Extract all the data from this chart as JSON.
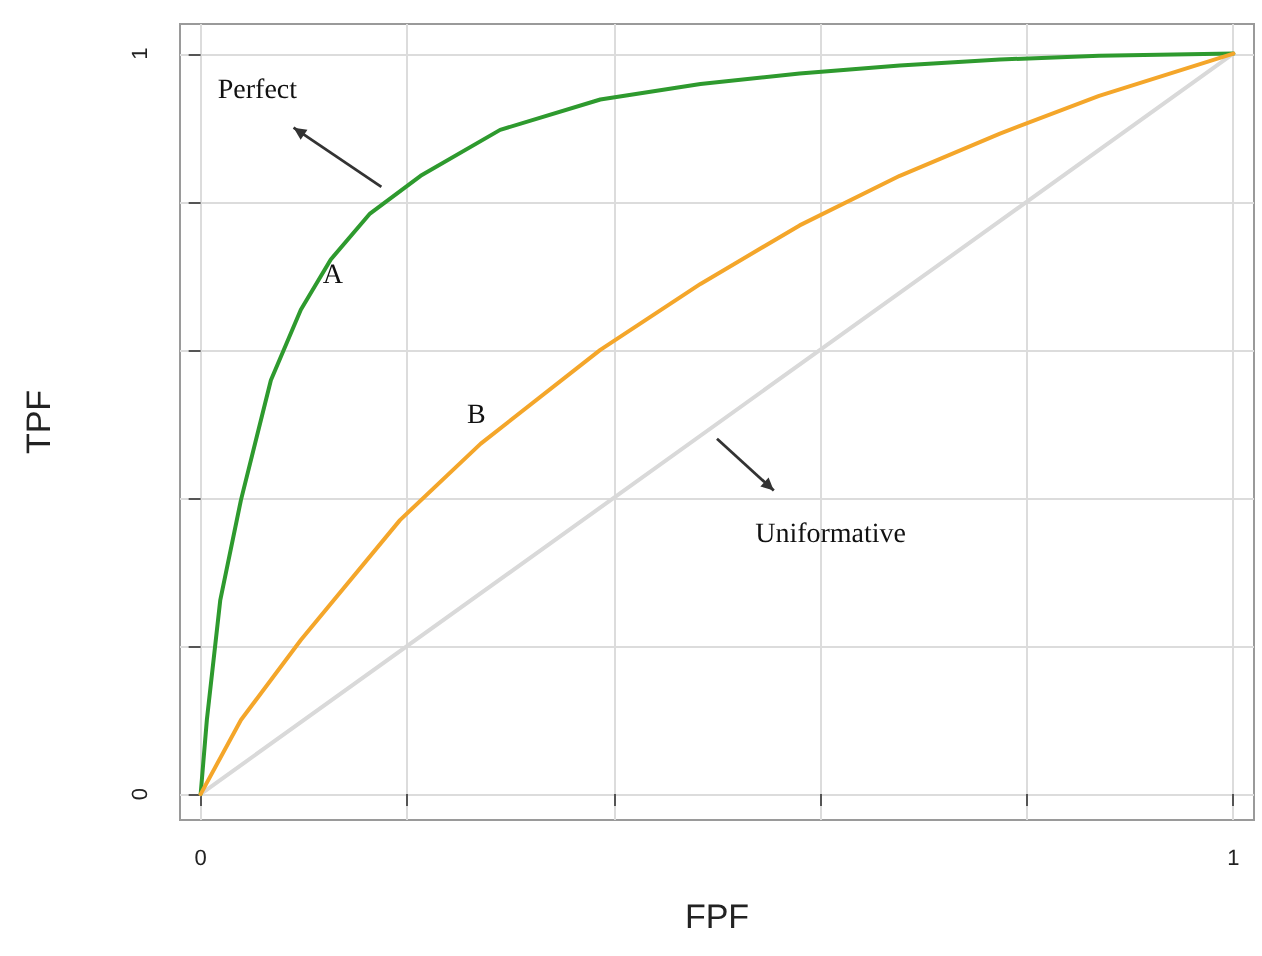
{
  "chart_data": {
    "type": "line",
    "xlabel": "FPF",
    "ylabel": "TPF",
    "xlim": [
      -0.02,
      1.02
    ],
    "ylim": [
      -0.035,
      1.04
    ],
    "xticks": [
      0,
      {
        "value": 0.2,
        "label": null
      },
      {
        "value": 0.4,
        "label": null
      },
      {
        "value": 0.6,
        "label": null
      },
      {
        "value": 0.8,
        "label": null
      },
      1
    ],
    "yticks": [
      0,
      {
        "value": 0.2,
        "label": null
      },
      {
        "value": 0.4,
        "label": null
      },
      {
        "value": 0.6,
        "label": null
      },
      {
        "value": 0.8,
        "label": null
      },
      1
    ],
    "grid": true,
    "marker": "none",
    "line_style": "solid",
    "series": [
      {
        "color": "#d9d9d9",
        "x": [
          0,
          1
        ],
        "values": [
          0,
          1
        ]
      },
      {
        "color": "#2e9a2e",
        "x": [
          0,
          0.006,
          0.019,
          0.039,
          0.068,
          0.097,
          0.126,
          0.164,
          0.213,
          0.29,
          0.387,
          0.484,
          0.58,
          0.677,
          0.774,
          0.87,
          1
        ],
        "values": [
          0,
          0.1,
          0.262,
          0.397,
          0.559,
          0.654,
          0.722,
          0.784,
          0.835,
          0.897,
          0.938,
          0.959,
          0.973,
          0.984,
          0.992,
          0.997,
          1
        ]
      },
      {
        "color": "#f4a62a",
        "x": [
          0,
          0.039,
          0.097,
          0.193,
          0.271,
          0.387,
          0.484,
          0.58,
          0.677,
          0.774,
          0.87,
          1
        ],
        "values": [
          0,
          0.1,
          0.208,
          0.37,
          0.473,
          0.6,
          0.689,
          0.768,
          0.835,
          0.892,
          0.943,
          1
        ]
      }
    ],
    "annotations": [
      "Perfect",
      {
        "text": "A",
        "x": 0.128,
        "y": 0.7
      },
      "B",
      "Uniformative"
    ]
  }
}
